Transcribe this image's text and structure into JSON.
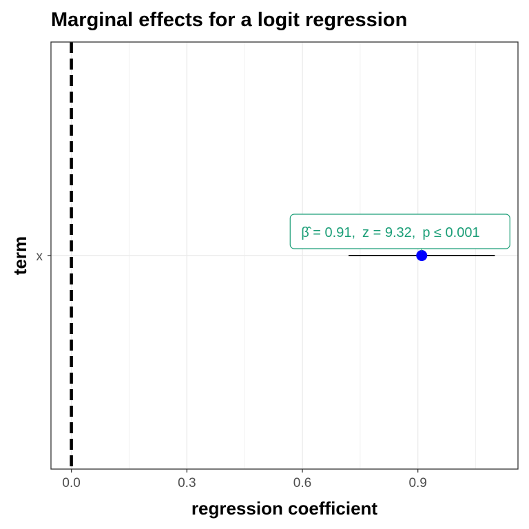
{
  "chart_data": {
    "type": "scatter",
    "title": "Marginal effects for a logit regression",
    "xlabel": "regression coefficient",
    "ylabel": "term",
    "xlim": [
      -0.053,
      1.16
    ],
    "xticks": [
      0.0,
      0.3,
      0.6,
      0.9
    ],
    "xtick_labels": [
      "0.0",
      "0.3",
      "0.6",
      "0.9"
    ],
    "categories": [
      "x"
    ],
    "points": [
      {
        "term": "x",
        "estimate": 0.91,
        "conf_low": 0.72,
        "conf_high": 1.1,
        "label": "β̂ = 0.91,  z = 9.32,  p ≤ 0.001",
        "label_parts": {
          "estimate": "β̂ = 0.91,",
          "z": "z = 9.32,",
          "p": "p ≤ 0.001"
        }
      }
    ],
    "reference_line": {
      "x": 0,
      "style": "dashed",
      "color": "#000000"
    },
    "grid": true,
    "colors": {
      "point": "#0000ff",
      "annotation": "#1b9e77",
      "errorbar": "#000000"
    }
  }
}
